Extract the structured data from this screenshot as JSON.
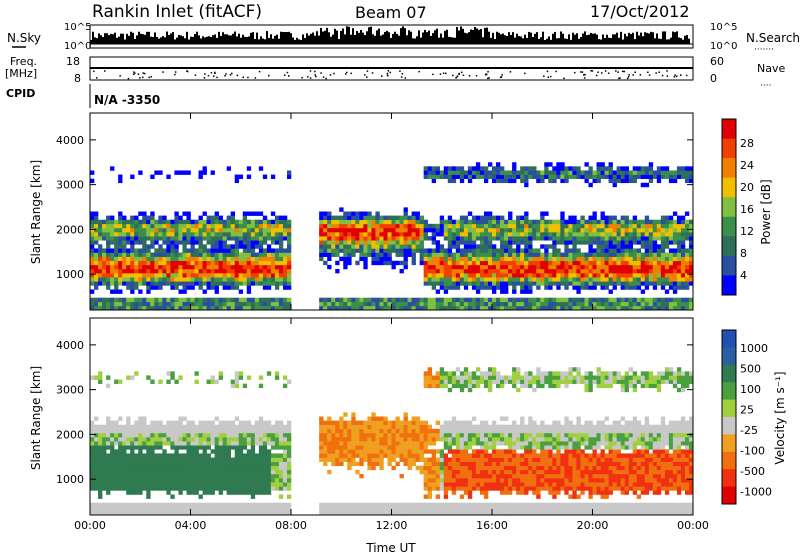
{
  "header": {
    "title": "Rankin Inlet (fitACF)",
    "beam": "Beam 07",
    "date": "17/Oct/2012"
  },
  "labels": {
    "nsky": "N.Sky",
    "nsearch": "N.Search",
    "nsearch_dots": "·······",
    "freq": "Freq.",
    "mhz": "[MHz]",
    "nave": "Nave",
    "nave_dots": "····",
    "cpid": "CPID",
    "cpid_value": "N/A -3350"
  },
  "colors": {
    "power": [
      "#0000ff",
      "#2a4fa0",
      "#2f6f5a",
      "#3a8f4a",
      "#80c040",
      "#f0c000",
      "#f08000",
      "#f04000",
      "#e00000"
    ],
    "velocity": [
      "#2050b0",
      "#2a5fa0",
      "#2f7a50",
      "#4aa040",
      "#a0d040",
      "#c8c8c8",
      "#f0a020",
      "#f07010",
      "#f03010",
      "#e00000"
    ]
  },
  "chart_data": [
    {
      "type": "line",
      "name": "noise-panel",
      "left_ticks": [
        "10^5",
        "10^0"
      ],
      "right_ticks": [
        "10^5",
        "10^0"
      ],
      "series_left_label": "N.Sky",
      "series_right_label": "N.Search"
    },
    {
      "type": "scatter",
      "name": "freq-nave-panel",
      "left_ticks": [
        "18",
        "8"
      ],
      "right_ticks": [
        "60",
        "0"
      ]
    },
    {
      "type": "heatmap",
      "name": "power-panel",
      "ylabel": "Slant Range [km]",
      "ylim": [
        200,
        4600
      ],
      "yticks": [
        "4000",
        "3000",
        "2000",
        "1000"
      ],
      "colorbar_label": "Power [dB]",
      "colorbar_ticks": [
        "28",
        "24",
        "20",
        "16",
        "12",
        "8",
        "4"
      ]
    },
    {
      "type": "heatmap",
      "name": "velocity-panel",
      "ylabel": "Slant Range [km]",
      "ylim": [
        200,
        4600
      ],
      "yticks": [
        "4000",
        "3000",
        "2000",
        "1000"
      ],
      "colorbar_label": "Velocity [m s⁻¹]",
      "colorbar_ticks": [
        "1000",
        "500",
        "100",
        "25",
        "-25",
        "-100",
        "-500",
        "-1000"
      ],
      "xlabel": "Time UT",
      "xticks": [
        "00:00",
        "04:00",
        "08:00",
        "12:00",
        "16:00",
        "20:00",
        "00:00"
      ]
    }
  ]
}
